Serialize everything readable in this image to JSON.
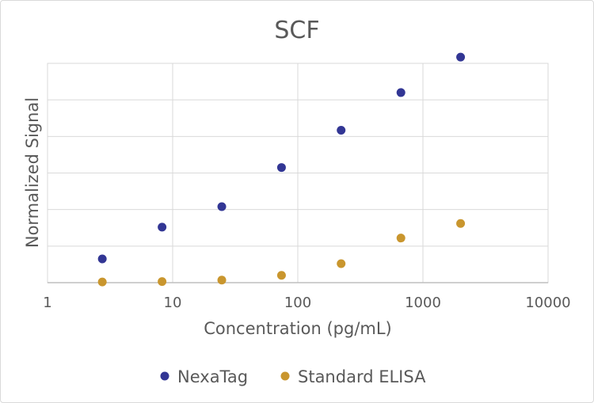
{
  "chart_data": {
    "type": "scatter",
    "title": "SCF",
    "xlabel": "Concentration (pg/mL)",
    "ylabel": "Normalized Signal",
    "x_scale": "log",
    "xlim": [
      1,
      10000
    ],
    "x_ticks": [
      "1",
      "10",
      "100",
      "1000",
      "10000"
    ],
    "ylim": [
      0,
      6
    ],
    "y_tick_labels_shown": false,
    "grid": true,
    "legend_position": "bottom",
    "series": [
      {
        "name": "NexaTag",
        "color": "#323694",
        "x": [
          2.74,
          8.23,
          24.7,
          74.1,
          222,
          667,
          2000
        ],
        "y": [
          0.65,
          1.52,
          2.08,
          3.15,
          4.17,
          5.2,
          6.17
        ]
      },
      {
        "name": "Standard ELISA",
        "color": "#C9962E",
        "x": [
          2.74,
          8.23,
          24.7,
          74.1,
          222,
          667,
          2000
        ],
        "y": [
          0.02,
          0.03,
          0.07,
          0.2,
          0.52,
          1.22,
          1.62
        ]
      }
    ]
  }
}
